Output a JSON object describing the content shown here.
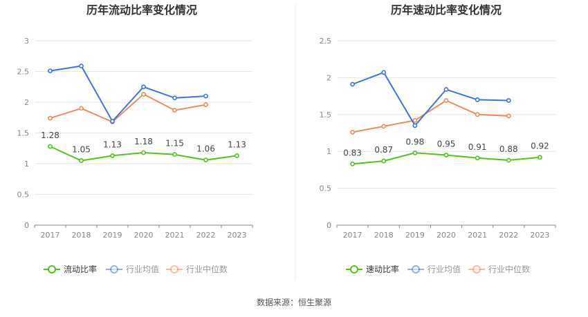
{
  "chart_data": [
    {
      "type": "line",
      "title": "历年流动比率变化情况",
      "categories": [
        "2017",
        "2018",
        "2019",
        "2020",
        "2021",
        "2022",
        "2023"
      ],
      "y_ticks": [
        "0",
        "0.5",
        "1",
        "1.5",
        "2",
        "2.5",
        "3"
      ],
      "ylim": [
        0,
        3
      ],
      "grid": true,
      "legend_position": "bottom",
      "series": [
        {
          "name": "流动比率",
          "color": "#52c41a",
          "values": [
            1.28,
            1.05,
            1.13,
            1.18,
            1.15,
            1.06,
            1.13
          ],
          "labels": [
            "1.28",
            "1.05",
            "1.13",
            "1.18",
            "1.15",
            "1.06",
            "1.13"
          ]
        },
        {
          "name": "行业均值",
          "color": "#3a76e0",
          "values": [
            2.51,
            2.59,
            1.69,
            2.25,
            2.07,
            2.1,
            null
          ]
        },
        {
          "name": "行业中位数",
          "color": "#f08a5d",
          "values": [
            1.74,
            1.9,
            1.68,
            2.13,
            1.87,
            1.96,
            null
          ]
        }
      ]
    },
    {
      "type": "line",
      "title": "历年速动比率变化情况",
      "categories": [
        "2017",
        "2018",
        "2019",
        "2020",
        "2021",
        "2022",
        "2023"
      ],
      "y_ticks": [
        "0",
        "0.5",
        "1",
        "1.5",
        "2",
        "2.5"
      ],
      "ylim": [
        0,
        2.5
      ],
      "grid": true,
      "legend_position": "bottom",
      "series": [
        {
          "name": "速动比率",
          "color": "#52c41a",
          "values": [
            0.83,
            0.87,
            0.98,
            0.95,
            0.91,
            0.88,
            0.92
          ],
          "labels": [
            "0.83",
            "0.87",
            "0.98",
            "0.95",
            "0.91",
            "0.88",
            "0.92"
          ]
        },
        {
          "name": "行业均值",
          "color": "#3a76e0",
          "values": [
            1.91,
            2.07,
            1.35,
            1.84,
            1.7,
            1.69,
            null
          ]
        },
        {
          "name": "行业中位数",
          "color": "#f08a5d",
          "values": [
            1.26,
            1.34,
            1.42,
            1.69,
            1.5,
            1.48,
            null
          ]
        }
      ]
    }
  ],
  "source": "数据来源：恒生聚源"
}
